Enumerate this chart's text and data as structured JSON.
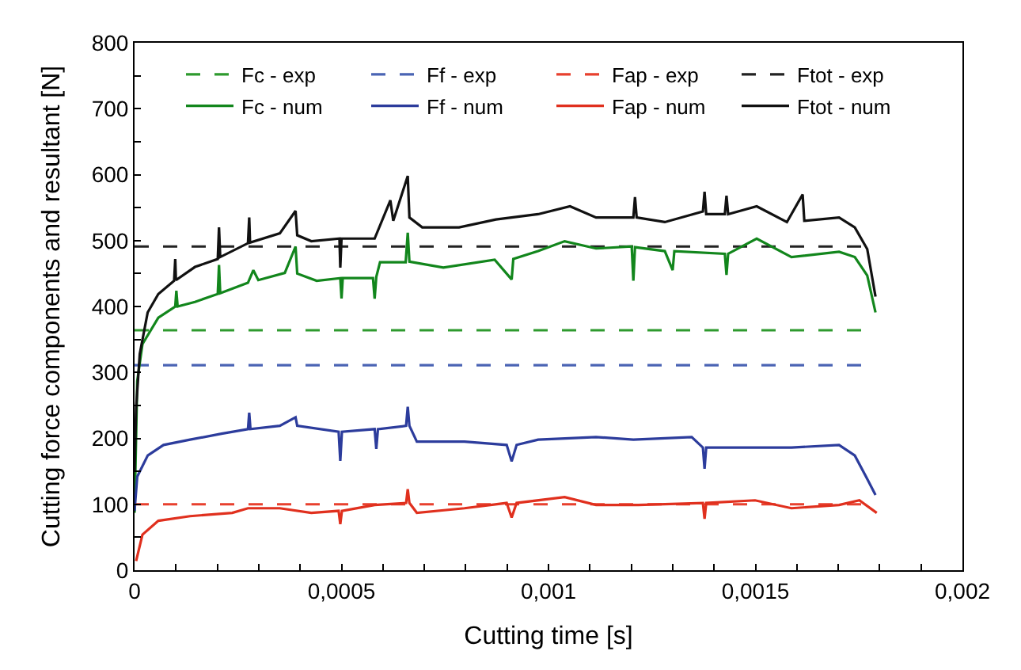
{
  "chart_data": {
    "type": "line",
    "xlabel": "Cutting time [s]",
    "ylabel": "Cutting force components and resultant [N]",
    "xlim": [
      0,
      0.002
    ],
    "ylim": [
      0,
      800
    ],
    "xticks": [
      0,
      {
        "value": 0.0001,
        "label": null
      },
      {
        "value": 0.0002,
        "label": null
      },
      {
        "value": 0.0003,
        "label": null
      },
      {
        "value": 0.0004,
        "label": null
      },
      {
        "value": 0.0005,
        "label": "0,0005"
      },
      {
        "value": 0.0006,
        "label": null
      },
      {
        "value": 0.0007,
        "label": null
      },
      {
        "value": 0.0008,
        "label": null
      },
      {
        "value": 0.0009,
        "label": null
      },
      {
        "value": 0.001,
        "label": "0,001"
      },
      {
        "value": 0.0011,
        "label": null
      },
      {
        "value": 0.0012,
        "label": null
      },
      {
        "value": 0.0013,
        "label": null
      },
      {
        "value": 0.0014,
        "label": null
      },
      {
        "value": 0.0015,
        "label": "0,0015"
      },
      {
        "value": 0.0016,
        "label": null
      },
      {
        "value": 0.0017,
        "label": null
      },
      {
        "value": 0.0018,
        "label": null
      },
      {
        "value": 0.0019,
        "label": null
      },
      {
        "value": 0.002,
        "label": "0,002"
      }
    ],
    "yticks": [
      0,
      {
        "value": 50,
        "label": null
      },
      100,
      {
        "value": 150,
        "label": null
      },
      200,
      {
        "value": 250,
        "label": null
      },
      300,
      {
        "value": 350,
        "label": null
      },
      400,
      {
        "value": 450,
        "label": null
      },
      500,
      {
        "value": 550,
        "label": null
      },
      600,
      {
        "value": 650,
        "label": null
      },
      700,
      {
        "value": 750,
        "label": null
      },
      800
    ],
    "legend": "top",
    "marker": "none",
    "series": [
      {
        "name": "Fc - exp",
        "color": "#2e9a2e",
        "line_style": "dashed",
        "x": [
          0,
          0.00176
        ],
        "values": [
          364,
          364
        ]
      },
      {
        "name": "Ff - exp",
        "color": "#4a64b4",
        "line_style": "dashed",
        "x": [
          0,
          0.00176
        ],
        "values": [
          311,
          311
        ]
      },
      {
        "name": "Fap - exp",
        "color": "#e8402e",
        "line_style": "dashed",
        "x": [
          0,
          0.00176
        ],
        "values": [
          100,
          100
        ]
      },
      {
        "name": "Ftot - exp",
        "color": "#222222",
        "line_style": "dashed",
        "x": [
          0,
          0.00176
        ],
        "values": [
          491,
          491
        ]
      },
      {
        "name": "Fc - num",
        "color": "#12861c",
        "line_style": "solid",
        "x": [
          0,
          6.5e-06,
          1.91e-05,
          5.74e-05,
          9.83e-05,
          0.000101,
          0.000104,
          0.000146,
          0.000201,
          0.000204,
          0.000207,
          0.000274,
          0.000287,
          0.000299,
          0.000363,
          0.000389,
          0.000393,
          0.00044,
          0.000497,
          0.0005,
          0.000503,
          0.000576,
          0.00058,
          0.000584,
          0.000593,
          0.000655,
          0.00066,
          0.000664,
          0.000746,
          0.00087,
          0.000911,
          0.000915,
          0.000975,
          0.001039,
          0.001115,
          0.001201,
          0.001205,
          0.001209,
          0.001281,
          0.0013,
          0.001304,
          0.001426,
          0.00143,
          0.001434,
          0.001503,
          0.001587,
          0.001702,
          0.00174,
          0.00177,
          0.00179
        ],
        "values": [
          87,
          287,
          343,
          383,
          400,
          424,
          400,
          407,
          419,
          463,
          420,
          436,
          455,
          440,
          451,
          491,
          450,
          439,
          443,
          412,
          443,
          443,
          412,
          445,
          467,
          467,
          512,
          468,
          459,
          471,
          441,
          472,
          484,
          499,
          488,
          491,
          439,
          490,
          484,
          455,
          484,
          480,
          448,
          480,
          503,
          475,
          483,
          475,
          447,
          391
        ]
      },
      {
        "name": "Ff - num",
        "color": "#2c3c9c",
        "line_style": "solid",
        "x": [
          0,
          6.5e-06,
          3.19e-05,
          7e-05,
          0.000134,
          0.00021,
          0.000274,
          0.000277,
          0.00028,
          0.000351,
          0.000389,
          0.000393,
          0.000493,
          0.000497,
          0.000501,
          0.00058,
          0.000584,
          0.000588,
          0.000656,
          0.00066,
          0.000664,
          0.000682,
          0.000797,
          0.000899,
          0.000911,
          0.000923,
          0.000975,
          0.001115,
          0.001205,
          0.001346,
          0.001373,
          0.001377,
          0.001381,
          0.001499,
          0.001587,
          0.001702,
          0.00174,
          0.001767,
          0.00179
        ],
        "values": [
          90,
          142,
          174,
          190,
          198,
          207,
          214,
          239,
          214,
          219,
          232,
          219,
          210,
          166,
          210,
          214,
          184,
          214,
          219,
          248,
          219,
          195,
          195,
          190,
          165,
          190,
          198,
          202,
          198,
          202,
          186,
          154,
          186,
          186,
          186,
          190,
          174,
          142,
          114
        ]
      },
      {
        "name": "Fap - num",
        "color": "#e0301e",
        "line_style": "solid",
        "x": [
          3.8e-06,
          1.91e-05,
          5.74e-05,
          0.000134,
          0.000236,
          0.000274,
          0.000351,
          0.000427,
          0.000493,
          0.000497,
          0.000501,
          0.00058,
          0.000656,
          0.00066,
          0.000664,
          0.000682,
          0.000797,
          0.000899,
          0.000911,
          0.000923,
          0.001039,
          0.001115,
          0.001217,
          0.001373,
          0.001377,
          0.001381,
          0.001499,
          0.001587,
          0.001702,
          0.001751,
          0.001793
        ],
        "values": [
          14,
          54,
          75,
          82,
          87,
          94,
          94,
          87,
          90,
          70,
          90,
          99,
          102,
          123,
          102,
          87,
          94,
          102,
          80,
          102,
          111,
          99,
          99,
          102,
          78,
          102,
          106,
          94,
          99,
          106,
          87
        ]
      },
      {
        "name": "Ftot - num",
        "color": "#111111",
        "line_style": "solid",
        "x": [
          0,
          3.8e-06,
          1.26e-05,
          3.17e-05,
          5.74e-05,
          9.56e-05,
          9.83e-05,
          0.0001,
          0.000146,
          0.000201,
          0.000204,
          0.000207,
          0.000274,
          0.000277,
          0.000279,
          0.000351,
          0.000389,
          0.000393,
          0.000427,
          0.000495,
          0.000497,
          0.0005,
          0.00058,
          0.000618,
          0.000625,
          0.00066,
          0.000664,
          0.000695,
          0.000784,
          0.000873,
          0.000975,
          0.001052,
          0.001115,
          0.001205,
          0.001209,
          0.001213,
          0.001281,
          0.001373,
          0.001377,
          0.001381,
          0.001426,
          0.00143,
          0.001434,
          0.001503,
          0.001576,
          0.001614,
          0.001618,
          0.001702,
          0.00174,
          0.00177,
          0.00179
        ],
        "values": [
          150,
          246,
          328,
          391,
          419,
          439,
          472,
          440,
          460,
          472,
          520,
          475,
          496,
          535,
          497,
          511,
          545,
          508,
          499,
          503,
          459,
          503,
          503,
          561,
          530,
          598,
          535,
          520,
          520,
          532,
          540,
          552,
          535,
          535,
          566,
          535,
          528,
          544,
          574,
          540,
          540,
          568,
          540,
          552,
          528,
          570,
          530,
          535,
          520,
          487,
          415
        ]
      }
    ]
  }
}
